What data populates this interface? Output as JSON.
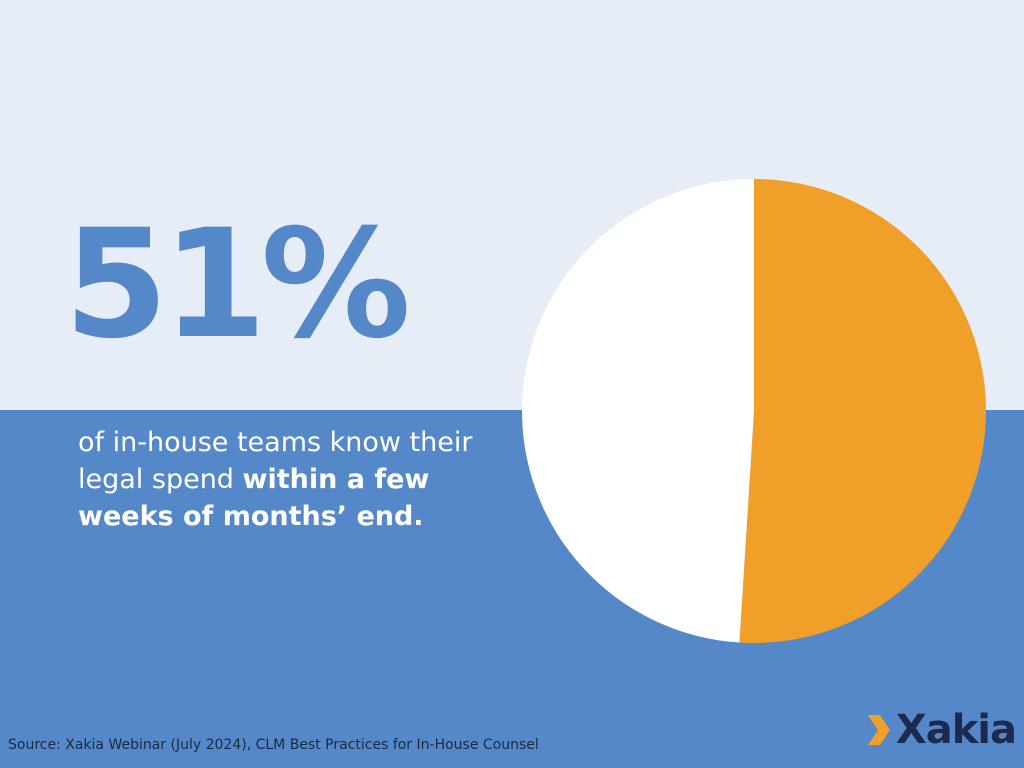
{
  "headline": {
    "stat": "51%",
    "caption_plain": "of in-house teams know their legal spend ",
    "caption_bold": "within a few weeks of months’ end."
  },
  "chart_data": {
    "type": "pie",
    "slices": [
      {
        "value": 51,
        "color": "#f0a028"
      },
      {
        "value": 49,
        "color": "#ffffff"
      }
    ]
  },
  "footer": {
    "source": "Source: Xakia Webinar (July 2024), CLM Best Practices for In-House Counsel"
  },
  "logo": {
    "text": "Xakia",
    "chevron_color": "#f0a028",
    "text_color": "#1b2a4e"
  }
}
